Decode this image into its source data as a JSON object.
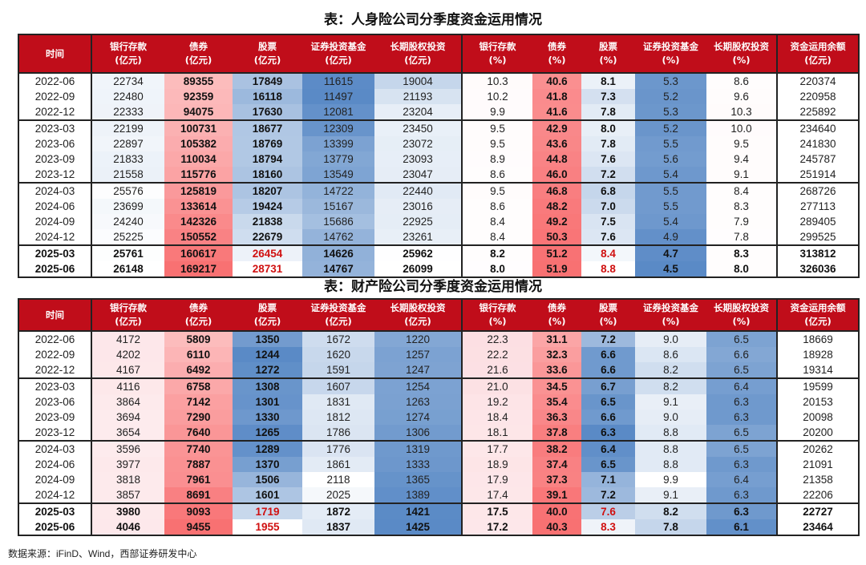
{
  "colors": {
    "header_bg": "#c00d1a",
    "red": "#f8696b",
    "blue": "#5a8ac6",
    "highlight_text": "#d01010"
  },
  "tables": [
    {
      "title": "表：人身险公司分季度资金运用情况",
      "headers": [
        [
          "时间",
          ""
        ],
        [
          "银行存款",
          "(亿元)"
        ],
        [
          "债券",
          "(亿元)"
        ],
        [
          "股票",
          "(亿元)"
        ],
        [
          "证券投资基金",
          "(亿元)"
        ],
        [
          "长期股权投资",
          "(亿元)"
        ],
        [
          "银行存款",
          "(%)"
        ],
        [
          "债券",
          "(%)"
        ],
        [
          "股票",
          "(%)"
        ],
        [
          "证券投资基金",
          "(%)"
        ],
        [
          "长期股权投资",
          "(%)"
        ],
        [
          "资金运用余额",
          "(亿元)"
        ]
      ],
      "rows": [
        [
          "2022-06",
          "22734",
          "89355",
          "17849",
          "11615",
          "19004",
          "10.3",
          "40.6",
          "8.1",
          "5.3",
          "8.6",
          "220374"
        ],
        [
          "2022-09",
          "22480",
          "92359",
          "16118",
          "11497",
          "21193",
          "10.2",
          "41.8",
          "7.3",
          "5.2",
          "9.6",
          "220958"
        ],
        [
          "2022-12",
          "22333",
          "94075",
          "17630",
          "12081",
          "23204",
          "9.9",
          "41.6",
          "7.8",
          "5.3",
          "10.3",
          "225892"
        ],
        [
          "2023-03",
          "22199",
          "100731",
          "18677",
          "12309",
          "23450",
          "9.5",
          "42.9",
          "8.0",
          "5.2",
          "10.0",
          "234640"
        ],
        [
          "2023-06",
          "22897",
          "105382",
          "18769",
          "13399",
          "23072",
          "9.5",
          "43.6",
          "7.8",
          "5.5",
          "9.5",
          "241830"
        ],
        [
          "2023-09",
          "21833",
          "110034",
          "18794",
          "13779",
          "23093",
          "8.9",
          "44.8",
          "7.6",
          "5.6",
          "9.4",
          "245787"
        ],
        [
          "2023-12",
          "21558",
          "115776",
          "18160",
          "13549",
          "23047",
          "8.6",
          "46.0",
          "7.2",
          "5.4",
          "9.1",
          "251914"
        ],
        [
          "2024-03",
          "25576",
          "125819",
          "18207",
          "14722",
          "22440",
          "9.5",
          "46.8",
          "6.8",
          "5.5",
          "8.4",
          "268726"
        ],
        [
          "2024-06",
          "23699",
          "133614",
          "19424",
          "15167",
          "23016",
          "8.6",
          "48.2",
          "7.0",
          "5.5",
          "8.3",
          "277113"
        ],
        [
          "2024-09",
          "24240",
          "142326",
          "21838",
          "15686",
          "22925",
          "8.4",
          "49.2",
          "7.5",
          "5.4",
          "7.9",
          "289405"
        ],
        [
          "2024-12",
          "25225",
          "150552",
          "22679",
          "14762",
          "23261",
          "8.4",
          "50.3",
          "7.6",
          "4.9",
          "7.8",
          "299525"
        ],
        [
          "2025-03",
          "25761",
          "160617",
          "26454",
          "14626",
          "25962",
          "8.2",
          "51.2",
          "8.4",
          "4.7",
          "8.3",
          "313812"
        ],
        [
          "2025-06",
          "26148",
          "169217",
          "28731",
          "14767",
          "26099",
          "8.0",
          "51.9",
          "8.8",
          "4.5",
          "8.0",
          "326036"
        ]
      ]
    },
    {
      "title": "表：财产险公司分季度资金运用情况",
      "headers": [
        [
          "时间",
          ""
        ],
        [
          "银行存款",
          "(亿元)"
        ],
        [
          "债券",
          "(亿元)"
        ],
        [
          "股票",
          "(亿元)"
        ],
        [
          "证券投资基金",
          "(亿元)"
        ],
        [
          "长期股权投资",
          "(亿元)"
        ],
        [
          "银行存款",
          "(%)"
        ],
        [
          "债券",
          "(%)"
        ],
        [
          "股票",
          "(%)"
        ],
        [
          "证券投资基金",
          "(%)"
        ],
        [
          "长期股权投资",
          "(%)"
        ],
        [
          "资金运用余额",
          "(亿元)"
        ]
      ],
      "rows": [
        [
          "2022-06",
          "4172",
          "5809",
          "1350",
          "1672",
          "1220",
          "22.3",
          "31.1",
          "7.2",
          "9.0",
          "6.5",
          "18669"
        ],
        [
          "2022-09",
          "4202",
          "6110",
          "1244",
          "1620",
          "1257",
          "22.2",
          "32.3",
          "6.6",
          "8.6",
          "6.6",
          "18928"
        ],
        [
          "2022-12",
          "4167",
          "6492",
          "1272",
          "1591",
          "1247",
          "21.6",
          "33.6",
          "6.6",
          "8.2",
          "6.5",
          "19314"
        ],
        [
          "2023-03",
          "4116",
          "6758",
          "1308",
          "1607",
          "1254",
          "21.0",
          "34.5",
          "6.7",
          "8.2",
          "6.4",
          "19599"
        ],
        [
          "2023-06",
          "3864",
          "7142",
          "1301",
          "1831",
          "1263",
          "19.2",
          "35.4",
          "6.5",
          "9.1",
          "6.3",
          "20153"
        ],
        [
          "2023-09",
          "3694",
          "7290",
          "1330",
          "1812",
          "1274",
          "18.4",
          "36.3",
          "6.6",
          "9.0",
          "6.3",
          "20098"
        ],
        [
          "2023-12",
          "3654",
          "7640",
          "1265",
          "1786",
          "1306",
          "18.1",
          "37.8",
          "6.3",
          "8.8",
          "6.5",
          "20200"
        ],
        [
          "2024-03",
          "3596",
          "7740",
          "1289",
          "1776",
          "1319",
          "17.7",
          "38.2",
          "6.4",
          "8.8",
          "6.5",
          "20262"
        ],
        [
          "2024-06",
          "3977",
          "7887",
          "1370",
          "1861",
          "1333",
          "18.9",
          "37.4",
          "6.5",
          "8.8",
          "6.3",
          "21091"
        ],
        [
          "2024-09",
          "3818",
          "7961",
          "1506",
          "2118",
          "1365",
          "17.9",
          "37.3",
          "7.1",
          "9.9",
          "6.4",
          "21358"
        ],
        [
          "2024-12",
          "3857",
          "8691",
          "1601",
          "2025",
          "1389",
          "17.4",
          "39.1",
          "7.2",
          "9.1",
          "6.3",
          "22206"
        ],
        [
          "2025-03",
          "3980",
          "9093",
          "1719",
          "1872",
          "1421",
          "17.5",
          "40.0",
          "7.6",
          "8.2",
          "6.3",
          "22727"
        ],
        [
          "2025-06",
          "4046",
          "9455",
          "1955",
          "1837",
          "1425",
          "17.2",
          "40.3",
          "8.3",
          "7.8",
          "6.1",
          "23464"
        ]
      ]
    }
  ],
  "footer": "数据来源：iFinD、Wind，西部证券研发中心"
}
